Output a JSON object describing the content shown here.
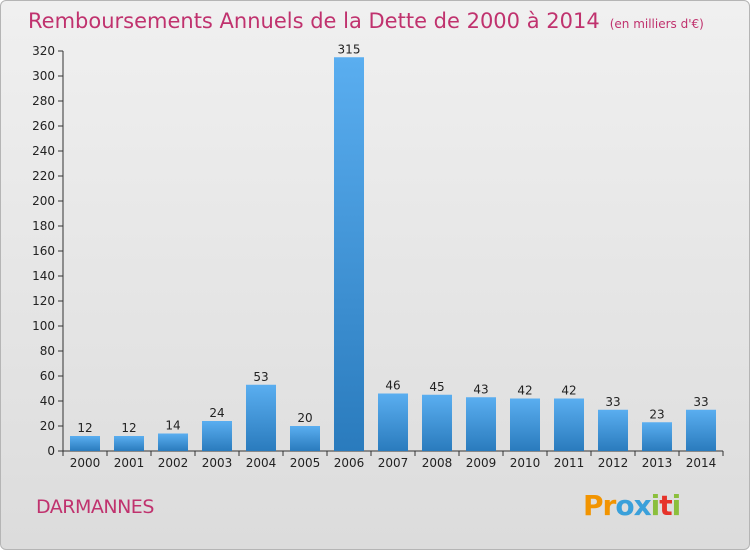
{
  "header": {
    "title": "Remboursements Annuels de la Dette de 2000 à 2014",
    "unit": "(en milliers d'€)"
  },
  "footer": {
    "commune": "DARMANNES",
    "logo_letters": [
      "P",
      "r",
      "o",
      "x",
      "i",
      "t",
      "i"
    ]
  },
  "colors": {
    "title": "#c0326e",
    "bar_top": "#5aaef0",
    "bar_bottom": "#2a7bbd",
    "logo": [
      "#f29400",
      "#f29400",
      "#3aa0da",
      "#3aa0da",
      "#8bbf3c",
      "#e6332a",
      "#8bbf3c"
    ]
  },
  "chart_data": {
    "type": "bar",
    "title": "Remboursements Annuels de la Dette de 2000 à 2014",
    "categories": [
      "2000",
      "2001",
      "2002",
      "2003",
      "2004",
      "2005",
      "2006",
      "2007",
      "2008",
      "2009",
      "2010",
      "2011",
      "2012",
      "2013",
      "2014"
    ],
    "values": [
      12,
      12,
      14,
      24,
      53,
      20,
      315,
      46,
      45,
      43,
      42,
      42,
      33,
      23,
      33
    ],
    "ylim": [
      0,
      320
    ],
    "yticks": [
      0,
      20,
      40,
      60,
      80,
      100,
      120,
      140,
      160,
      180,
      200,
      220,
      240,
      260,
      280,
      300,
      320
    ],
    "grid": false,
    "legend": "none"
  }
}
